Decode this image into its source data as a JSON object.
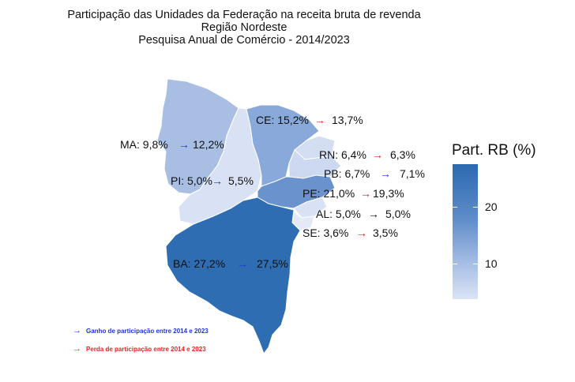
{
  "title": {
    "line1": "Participação das Unidades da Federação na receita bruta de revenda",
    "line2": "Região  Nordeste",
    "line3": "Pesquisa Anual de Comércio - 2014/2023"
  },
  "states": [
    {
      "code": "MA",
      "before": "MA: 9,8%",
      "arrow": "→",
      "after": "12,2%",
      "direction": "up"
    },
    {
      "code": "PI",
      "before": "PI: 5,0%",
      "arrow": "→",
      "after": "5,5%",
      "direction": "up"
    },
    {
      "code": "CE",
      "before": "CE: 15,2%",
      "arrow": "→",
      "after": "13,7%",
      "direction": "down"
    },
    {
      "code": "RN",
      "before": "RN: 6,4%",
      "arrow": "→",
      "after": "6,3%",
      "direction": "down"
    },
    {
      "code": "PB",
      "before": "PB: 6,7%",
      "arrow": "→",
      "after": "7,1%",
      "direction": "up"
    },
    {
      "code": "PE",
      "before": "PE: 21,0%",
      "arrow": "→",
      "after": "19,3%",
      "direction": "down"
    },
    {
      "code": "AL",
      "before": "AL: 5,0%",
      "arrow": "→",
      "after": "5,0%",
      "direction": "equal"
    },
    {
      "code": "SE",
      "before": "SE: 3,6%",
      "arrow": "→",
      "after": "3,5%",
      "direction": "down"
    },
    {
      "code": "BA",
      "before": "BA: 27,2%",
      "arrow": "→",
      "after": "27,5%",
      "direction": "up"
    }
  ],
  "legend": {
    "title": "Part. RB (%)",
    "tick_20": "20",
    "tick_10": "10",
    "colors": {
      "high": "#2c69b0",
      "low": "#dbe4f6"
    }
  },
  "notes": {
    "gain_arrow": "→",
    "gain": "Ganho de participação entre 2014 e 2023",
    "loss_arrow": "→",
    "loss": "Perda de participação entre 2014 e 2023",
    "gain_color": "#1f35e0",
    "loss_color": "#e8241e"
  },
  "fill_colors": {
    "MA": "#a8bee3",
    "PI": "#d9e2f4",
    "CE": "#88a9d9",
    "RN": "#d3def2",
    "PB": "#ccd9f0",
    "PE": "#6a93cd",
    "AL": "#d9e2f4",
    "SE": "#e3e9f7",
    "BA": "#2f6db2"
  }
}
